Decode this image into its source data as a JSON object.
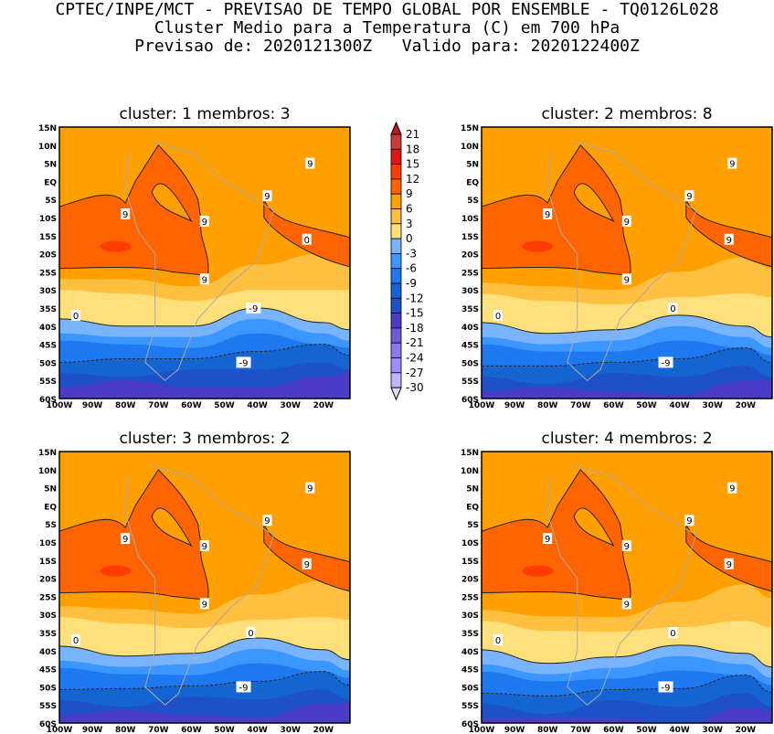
{
  "header": {
    "line1": "CPTEC/INPE/MCT - PREVISAO DE TEMPO GLOBAL POR ENSEMBLE - TQ0126L028",
    "line2": "Cluster Medio para a Temperatura (C) em 700 hPa",
    "line3": "Previsao de: 2020121300Z   Valido para: 2020122400Z"
  },
  "panels": [
    {
      "title": "cluster: 1   membros: 3",
      "contour_labels": [
        "9",
        "9",
        "9",
        "9",
        "9",
        "0",
        "0",
        "-9",
        "-9"
      ]
    },
    {
      "title": "cluster: 2   membros: 8",
      "contour_labels": [
        "9",
        "9",
        "9",
        "9",
        "9",
        "9",
        "0",
        "0",
        "-9"
      ]
    },
    {
      "title": "cluster: 3   membros: 2",
      "contour_labels": [
        "9",
        "9",
        "9",
        "9",
        "9",
        "9",
        "0",
        "0",
        "-9"
      ]
    },
    {
      "title": "cluster: 4   membros: 2",
      "contour_labels": [
        "9",
        "9",
        "9",
        "9",
        "9",
        "9",
        "0",
        "0",
        "-9"
      ]
    }
  ],
  "lat_ticks": [
    "15N",
    "10N",
    "5N",
    "EQ",
    "5S",
    "10S",
    "15S",
    "20S",
    "25S",
    "30S",
    "35S",
    "40S",
    "45S",
    "50S",
    "55S",
    "60S"
  ],
  "lon_ticks": [
    "100W",
    "90W",
    "80W",
    "70W",
    "60W",
    "50W",
    "40W",
    "30W",
    "20W"
  ],
  "colorbar": {
    "labels": [
      "21",
      "18",
      "15",
      "12",
      "9",
      "6",
      "3",
      "0",
      "-3",
      "-6",
      "-9",
      "-12",
      "-15",
      "-18",
      "-21",
      "-24",
      "-27",
      "-30"
    ],
    "colors": [
      "#c83c3c",
      "#e01414",
      "#ff3c00",
      "#ff6400",
      "#ffa000",
      "#ffc040",
      "#ffe07a",
      "#78b4ff",
      "#3c96ff",
      "#1e78f0",
      "#1464d2",
      "#1e50c8",
      "#4b3cc8",
      "#6e5ad8",
      "#8c78f0",
      "#a08cff",
      "#c0b4ff",
      "#dcdcff"
    ],
    "top_color": "#b41e1e"
  }
}
